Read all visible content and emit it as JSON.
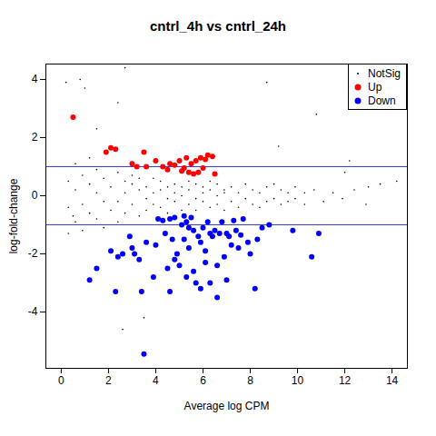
{
  "chart_data": {
    "type": "scatter",
    "title": "cntrl_4h vs cntrl_24h",
    "x_label": "Average log CPM",
    "y_label": "log-fold-change",
    "xlim": [
      -0.65,
      14.65
    ],
    "ylim": [
      -5.94,
      4.53
    ],
    "xticks": [
      0,
      2,
      4,
      6,
      8,
      10,
      12,
      14
    ],
    "yticks": [
      -4,
      -2,
      0,
      2,
      4
    ],
    "legend": "topright",
    "reference_lines": [
      1,
      -1
    ],
    "series": [
      {
        "name": "NotSig",
        "color": "black",
        "marker": "point",
        "x": [
          0.3,
          0.3,
          0.6,
          0.6,
          0.6,
          0.9,
          0.9,
          0.9,
          1.2,
          1.2,
          1.2,
          1.5,
          1.5,
          1.5,
          1.8,
          1.8,
          1.8,
          2.1,
          2.1,
          2.4,
          2.4,
          2.4,
          2.7,
          2.7,
          2.7,
          3.0,
          3.0,
          3.0,
          3.3,
          3.3,
          3.3,
          3.6,
          3.6,
          3.6,
          3.9,
          3.9,
          3.9,
          4.2,
          4.2,
          4.2,
          4.5,
          4.5,
          4.5,
          4.8,
          4.8,
          4.8,
          5.1,
          5.1,
          5.1,
          5.4,
          5.4,
          5.4,
          5.7,
          5.7,
          5.7,
          6.0,
          6.0,
          6.0,
          6.3,
          6.3,
          6.3,
          6.6,
          6.6,
          6.6,
          6.9,
          6.9,
          6.9,
          7.2,
          7.2,
          7.5,
          7.5,
          7.8,
          7.8,
          8.1,
          8.1,
          8.4,
          8.4,
          8.7,
          8.7,
          9.0,
          9.0,
          9.3,
          9.3,
          9.6,
          9.6,
          9.9,
          9.9,
          10.3,
          10.3,
          10.7,
          11.1,
          11.5,
          11.9,
          12.4,
          12.9,
          13.5,
          0.2,
          0.8,
          1.0,
          2.7,
          2.4,
          1.5,
          8.7,
          10.8,
          9.2,
          12.2,
          12.0,
          13.0,
          14.2,
          2.6,
          3.5,
          0.3,
          0.5
        ],
        "values": [
          0.5,
          -0.4,
          1.1,
          -0.9,
          0.2,
          -0.3,
          0.7,
          -1.2,
          0.4,
          -0.6,
          1.3,
          0.1,
          -0.8,
          0.9,
          -0.2,
          0.6,
          -1.1,
          0.3,
          -0.5,
          0.8,
          -0.2,
          -0.9,
          0.1,
          0.5,
          -0.6,
          -0.3,
          0.4,
          0.7,
          0.2,
          -0.7,
          0.6,
          -0.1,
          0.3,
          -0.5,
          0.6,
          -0.3,
          0.1,
          0.2,
          -0.4,
          0.5,
          -0.1,
          0.3,
          -0.6,
          0.4,
          -0.2,
          0.1,
          -0.5,
          0.3,
          0.0,
          0.2,
          -0.3,
          0.5,
          -0.1,
          0.4,
          -0.5,
          0.3,
          -0.2,
          0.1,
          -0.4,
          0.2,
          0.5,
          0.0,
          -0.3,
          0.4,
          0.2,
          -0.5,
          0.1,
          0.3,
          -0.2,
          -0.4,
          0.1,
          0.4,
          -0.1,
          -0.3,
          0.2,
          0.1,
          -0.4,
          0.3,
          -0.2,
          -0.1,
          0.4,
          0.2,
          -0.3,
          -0.2,
          0.1,
          0.3,
          -0.1,
          0.1,
          -0.3,
          0.2,
          -0.2,
          0.1,
          -0.1,
          0.2,
          -0.3,
          0.4,
          3.9,
          4.0,
          3.7,
          4.4,
          3.2,
          2.3,
          3.9,
          2.8,
          1.7,
          1.2,
          0.8,
          0.3,
          0.5,
          -4.6,
          -4.2,
          -1.3,
          -0.7
        ]
      },
      {
        "name": "Up",
        "color": "red",
        "marker": "circle",
        "x": [
          0.5,
          1.9,
          2.1,
          2.3,
          3.0,
          3.2,
          3.5,
          3.6,
          4.0,
          4.3,
          4.5,
          4.6,
          4.8,
          5.0,
          5.1,
          5.2,
          5.3,
          5.4,
          5.5,
          5.6,
          5.7,
          5.8,
          5.9,
          6.0,
          6.1,
          6.2,
          6.4,
          6.5
        ],
        "values": [
          2.7,
          1.5,
          1.65,
          1.6,
          1.1,
          1.0,
          1.5,
          1.0,
          1.2,
          1.0,
          0.9,
          1.1,
          1.05,
          1.2,
          0.85,
          0.95,
          1.3,
          0.8,
          1.1,
          0.75,
          1.2,
          0.8,
          1.3,
          0.95,
          1.25,
          1.4,
          1.35,
          0.75
        ]
      },
      {
        "name": "Down",
        "color": "blue",
        "marker": "circle",
        "x": [
          1.2,
          1.5,
          2.1,
          2.3,
          2.4,
          2.6,
          2.9,
          3.0,
          3.1,
          3.3,
          3.4,
          3.5,
          3.6,
          3.9,
          4.0,
          4.1,
          4.3,
          4.4,
          4.5,
          4.6,
          4.6,
          4.7,
          4.8,
          4.8,
          4.9,
          5.0,
          5.1,
          5.2,
          5.2,
          5.3,
          5.3,
          5.4,
          5.4,
          5.5,
          5.6,
          5.6,
          5.7,
          5.8,
          5.9,
          5.9,
          6.0,
          6.1,
          6.1,
          6.2,
          6.3,
          6.3,
          6.4,
          6.5,
          6.6,
          6.6,
          6.7,
          6.8,
          6.9,
          7.0,
          7.0,
          7.1,
          7.2,
          7.3,
          7.4,
          7.5,
          7.6,
          7.7,
          7.9,
          8.0,
          8.2,
          8.3,
          8.5,
          8.8,
          9.8,
          10.6,
          10.9
        ],
        "values": [
          -2.9,
          -2.5,
          -1.9,
          -3.3,
          -2.1,
          -2.0,
          -1.4,
          -1.8,
          -2.0,
          -2.2,
          -3.3,
          -5.45,
          -1.6,
          -2.8,
          -1.7,
          -0.8,
          -0.85,
          -1.3,
          -2.5,
          -3.3,
          -0.8,
          -1.5,
          -2.2,
          -0.75,
          -2.0,
          -2.4,
          -1.0,
          -0.7,
          -1.5,
          -0.9,
          -2.8,
          -1.1,
          -1.8,
          -0.75,
          -2.6,
          -1.2,
          -3.0,
          -1.4,
          -1.6,
          -3.2,
          -1.1,
          -1.9,
          -2.3,
          -0.9,
          -1.3,
          -3.0,
          -1.4,
          -1.2,
          -2.4,
          -3.5,
          -1.3,
          -0.9,
          -2.1,
          -1.3,
          -2.9,
          -1.4,
          -1.7,
          -0.85,
          -1.2,
          -1.8,
          -1.35,
          -0.8,
          -1.6,
          -2.0,
          -3.2,
          -1.5,
          -1.1,
          -1.0,
          -1.2,
          -2.1,
          -1.3
        ]
      }
    ]
  }
}
